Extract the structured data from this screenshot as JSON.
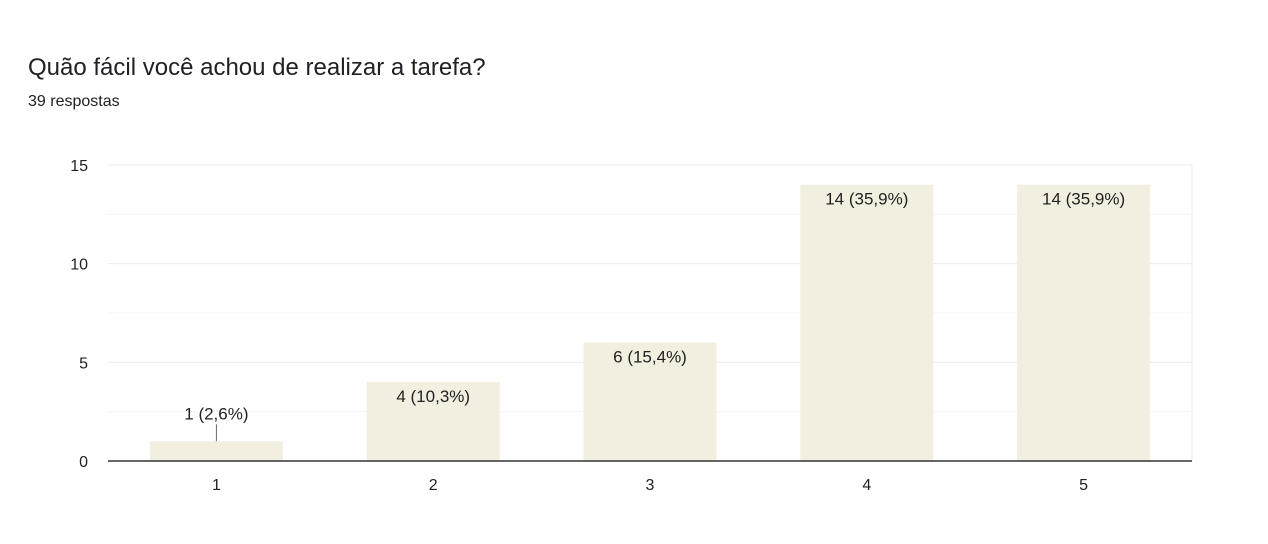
{
  "header": {
    "title": "Quão fácil você achou de realizar a tarefa?",
    "subtitle": "39 respostas"
  },
  "colors": {
    "bar": "#f3efe0",
    "bar_border": "#e8e2cc",
    "axis": "#333333",
    "grid": "#ebebeb",
    "text": "#222222"
  },
  "chart_data": {
    "type": "bar",
    "title": "",
    "xlabel": "",
    "ylabel": "",
    "categories": [
      "1",
      "2",
      "3",
      "4",
      "5"
    ],
    "values": [
      1,
      4,
      6,
      14,
      14
    ],
    "data_labels": [
      "1 (2,6%)",
      "4 (10,3%)",
      "6 (15,4%)",
      "14 (35,9%)",
      "14 (35,9%)"
    ],
    "ylim": [
      0,
      15
    ],
    "y_ticks": [
      0,
      5,
      10,
      15
    ],
    "y_minor_gridlines": [
      2.5,
      7.5,
      12.5
    ],
    "grid": true,
    "legend": "none"
  }
}
